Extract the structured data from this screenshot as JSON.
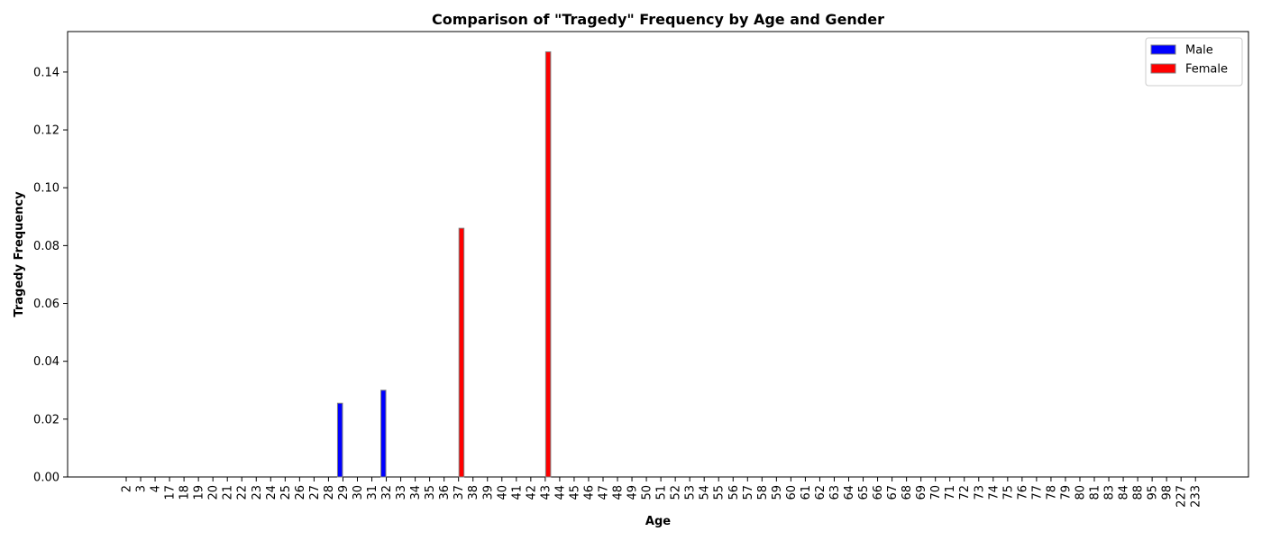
{
  "chart_data": {
    "type": "bar",
    "title": "Comparison of \"Tragedy\" Frequency by Age and Gender",
    "xlabel": "Age",
    "ylabel": "Tragedy Frequency",
    "ylim": [
      0,
      0.154
    ],
    "yticks": [
      0.0,
      0.02,
      0.04,
      0.06,
      0.08,
      0.1,
      0.12,
      0.14
    ],
    "ytick_labels": [
      "0.00",
      "0.02",
      "0.04",
      "0.06",
      "0.08",
      "0.10",
      "0.12",
      "0.14"
    ],
    "grid": false,
    "legend_position": "top-right",
    "categories": [
      "2",
      "3",
      "4",
      "17",
      "18",
      "19",
      "20",
      "21",
      "22",
      "23",
      "24",
      "25",
      "26",
      "27",
      "28",
      "29",
      "30",
      "31",
      "32",
      "33",
      "34",
      "35",
      "36",
      "37",
      "38",
      "39",
      "40",
      "41",
      "42",
      "43",
      "44",
      "45",
      "46",
      "47",
      "48",
      "49",
      "50",
      "51",
      "52",
      "53",
      "54",
      "55",
      "56",
      "57",
      "58",
      "59",
      "60",
      "61",
      "62",
      "63",
      "64",
      "65",
      "66",
      "67",
      "68",
      "69",
      "70",
      "71",
      "72",
      "73",
      "74",
      "75",
      "76",
      "77",
      "78",
      "79",
      "80",
      "81",
      "83",
      "84",
      "88",
      "95",
      "98",
      "227",
      "233"
    ],
    "series": [
      {
        "name": "Male",
        "color": "#0000ff",
        "values": [
          0,
          0,
          0,
          0,
          0,
          0,
          0,
          0,
          0,
          0,
          0,
          0,
          0,
          0,
          0,
          0.0255,
          0,
          0,
          0.03,
          0,
          0,
          0,
          0,
          0,
          0,
          0,
          0,
          0,
          0,
          0,
          0,
          0,
          0,
          0,
          0,
          0,
          0,
          0,
          0,
          0,
          0,
          0,
          0,
          0,
          0,
          0,
          0,
          0,
          0,
          0,
          0,
          0,
          0,
          0,
          0,
          0,
          0,
          0,
          0,
          0,
          0,
          0,
          0,
          0,
          0,
          0,
          0,
          0,
          0,
          0,
          0,
          0,
          0,
          0,
          0
        ]
      },
      {
        "name": "Female",
        "color": "#ff0000",
        "values": [
          0,
          0,
          0,
          0,
          0,
          0,
          0,
          0,
          0,
          0,
          0,
          0,
          0,
          0,
          0,
          0,
          0,
          0,
          0,
          0,
          0,
          0,
          0,
          0.086,
          0,
          0,
          0,
          0,
          0,
          0.147,
          0,
          0,
          0,
          0,
          0,
          0,
          0,
          0,
          0,
          0,
          0,
          0,
          0,
          0,
          0,
          0,
          0,
          0,
          0,
          0,
          0,
          0,
          0,
          0,
          0,
          0,
          0,
          0,
          0,
          0,
          0,
          0,
          0,
          0,
          0,
          0,
          0,
          0,
          0,
          0,
          0,
          0,
          0,
          0,
          0
        ]
      }
    ]
  }
}
